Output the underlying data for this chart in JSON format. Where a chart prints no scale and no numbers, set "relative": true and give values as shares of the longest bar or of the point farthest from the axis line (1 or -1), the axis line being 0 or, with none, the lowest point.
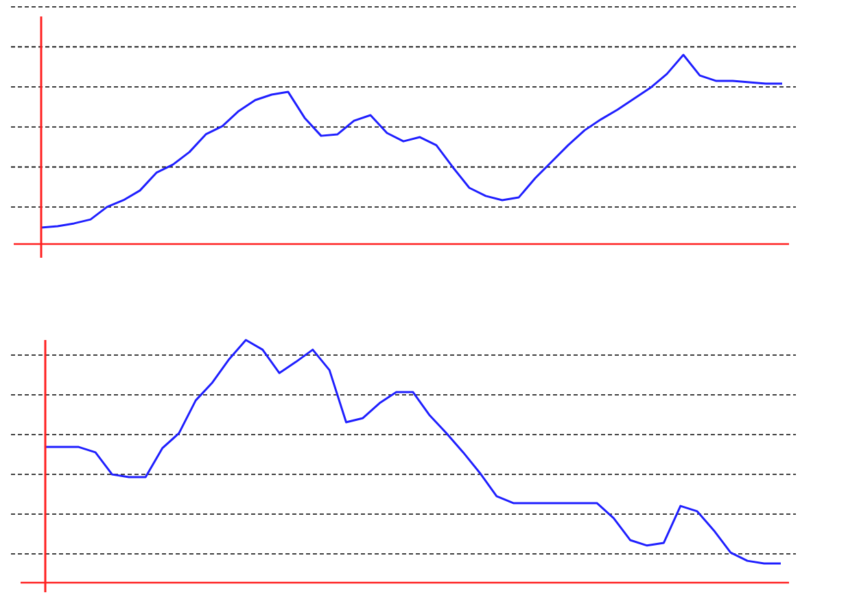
{
  "chart_data": [
    {
      "type": "line",
      "relative": true,
      "grid": "y",
      "categories": [
        null,
        null,
        null,
        null,
        null,
        null,
        null,
        null,
        null,
        null,
        null,
        null,
        null,
        null,
        null,
        null,
        null,
        null,
        null,
        null,
        null,
        null,
        null,
        null,
        null,
        null,
        null,
        null,
        null,
        null,
        null,
        null,
        null,
        null,
        null,
        null,
        null,
        null,
        null,
        null,
        null,
        null,
        null,
        null,
        null,
        null
      ],
      "series": [
        {
          "color": "#1f1fff",
          "values": [
            0.087,
            0.094,
            0.109,
            0.13,
            0.196,
            0.232,
            0.283,
            0.377,
            0.42,
            0.486,
            0.58,
            0.623,
            0.703,
            0.761,
            0.79,
            0.804,
            0.667,
            0.572,
            0.58,
            0.652,
            0.681,
            0.587,
            0.543,
            0.565,
            0.522,
            0.406,
            0.297,
            0.254,
            0.232,
            0.246,
            0.348,
            0.435,
            0.522,
            0.601,
            0.659,
            0.71,
            0.768,
            0.826,
            0.899,
            1,
            0.891,
            0.862,
            0.862,
            0.855,
            0.848,
            0.848
          ]
        }
      ]
    },
    {
      "type": "line",
      "relative": true,
      "grid": "y",
      "categories": [
        null,
        null,
        null,
        null,
        null,
        null,
        null,
        null,
        null,
        null,
        null,
        null,
        null,
        null,
        null,
        null,
        null,
        null,
        null,
        null,
        null,
        null,
        null,
        null,
        null,
        null,
        null,
        null,
        null,
        null,
        null,
        null,
        null,
        null,
        null,
        null,
        null,
        null,
        null,
        null,
        null,
        null,
        null,
        null,
        null
      ],
      "series": [
        {
          "color": "#1f1fff",
          "values": [
            0.559,
            0.559,
            0.559,
            0.537,
            0.446,
            0.435,
            0.435,
            0.554,
            0.616,
            0.751,
            0.825,
            0.921,
            1,
            0.96,
            0.864,
            0.91,
            0.96,
            0.876,
            0.661,
            0.678,
            0.74,
            0.785,
            0.785,
            0.689,
            0.616,
            0.537,
            0.452,
            0.356,
            0.328,
            0.328,
            0.328,
            0.328,
            0.328,
            0.328,
            0.266,
            0.175,
            0.153,
            0.164,
            0.316,
            0.294,
            0.215,
            0.124,
            0.09,
            0.079,
            0.079
          ]
        }
      ]
    }
  ]
}
